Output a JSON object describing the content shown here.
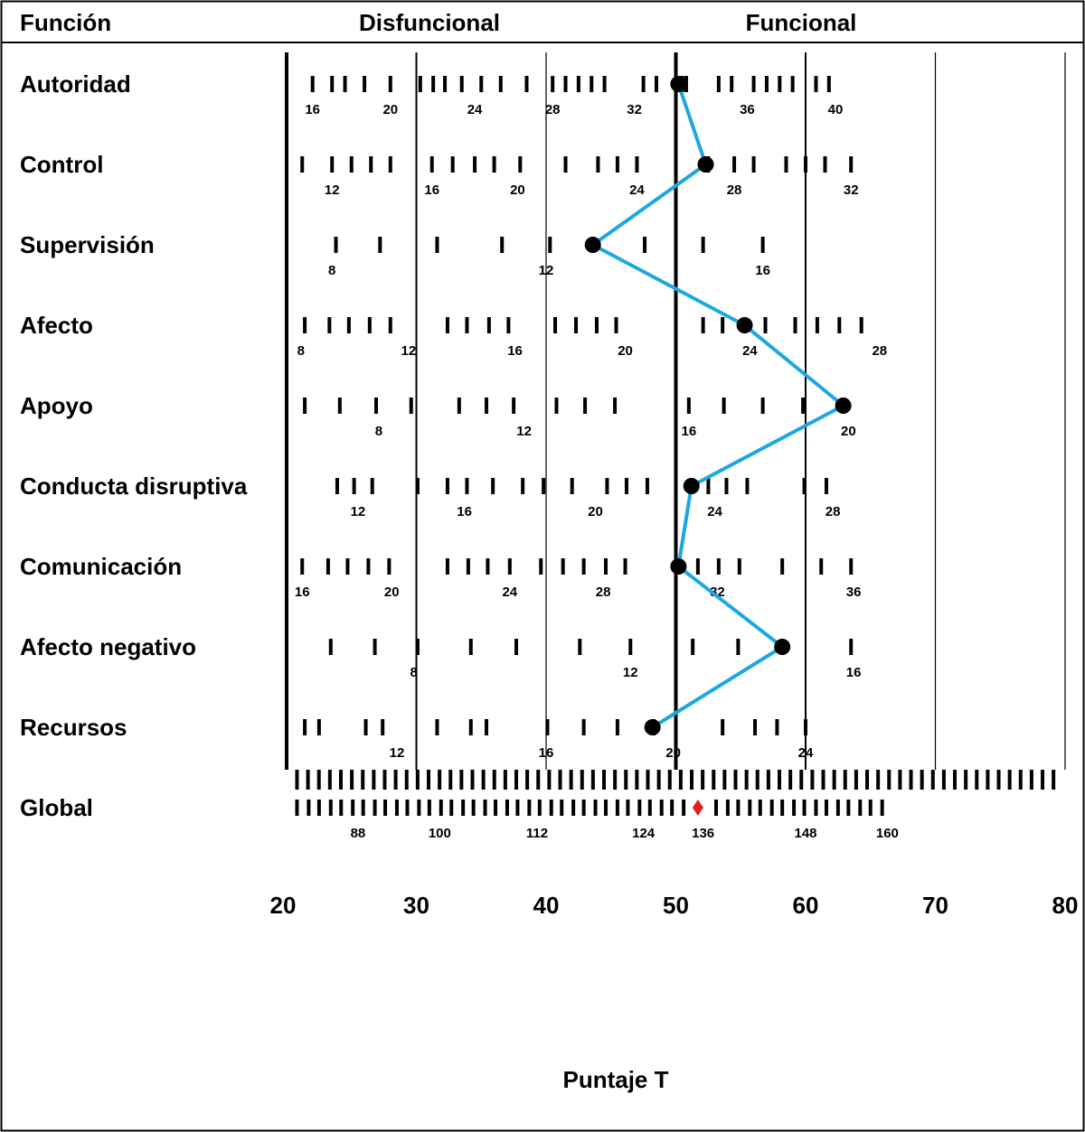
{
  "headers": {
    "col1": "Función",
    "col2": "Disfuncional",
    "col3": "Funcional"
  },
  "chart_data": {
    "type": "line",
    "title": "",
    "xlabel": "Puntaje T",
    "xlim": [
      20,
      80
    ],
    "x_ticks": [
      20,
      30,
      40,
      50,
      60,
      70,
      80
    ],
    "series_color": "#1ea7e1",
    "marker_color": "#000000",
    "global_marker_color": "#e02020",
    "rows": [
      {
        "name": "Autoridad",
        "ticks": [
          22,
          23.5,
          24.5,
          26,
          28,
          30.3,
          31.3,
          32.2,
          33.5,
          35,
          36.5,
          38.5,
          40.5,
          41.5,
          42.5,
          43.5,
          44.5,
          47.5,
          48.5,
          50.5,
          50.8,
          53.3,
          54.3,
          56,
          57,
          58,
          59,
          60.8,
          61.8
        ],
        "numbers": [
          {
            "label": "16",
            "x": 22
          },
          {
            "label": "20",
            "x": 28
          },
          {
            "label": "24",
            "x": 34.5
          },
          {
            "label": "28",
            "x": 40.5
          },
          {
            "label": "32",
            "x": 46.8
          },
          {
            "label": "36",
            "x": 55.5
          },
          {
            "label": "40",
            "x": 62.3
          }
        ],
        "point": 50.2
      },
      {
        "name": "Control",
        "ticks": [
          21.2,
          23.5,
          25,
          26.5,
          28,
          31.2,
          32.8,
          34.5,
          36,
          38,
          41.5,
          44,
          45.5,
          47,
          52.5,
          54.5,
          56,
          58.5,
          60,
          61.5,
          63.5
        ],
        "numbers": [
          {
            "label": "12",
            "x": 23.5
          },
          {
            "label": "16",
            "x": 31.2
          },
          {
            "label": "20",
            "x": 37.8
          },
          {
            "label": "24",
            "x": 47
          },
          {
            "label": "28",
            "x": 54.5
          },
          {
            "label": "32",
            "x": 63.5
          }
        ],
        "point": 52.3
      },
      {
        "name": "Supervisión",
        "ticks": [
          23.8,
          27.2,
          31.6,
          36.6,
          40.3,
          43.6,
          47.6,
          52.1,
          56.7
        ],
        "numbers": [
          {
            "label": "8",
            "x": 23.5
          },
          {
            "label": "12",
            "x": 40
          },
          {
            "label": "16",
            "x": 56.7
          }
        ],
        "point": 43.6
      },
      {
        "name": "Afecto",
        "ticks": [
          21.4,
          23.3,
          24.8,
          26.4,
          28,
          32.4,
          33.9,
          35.6,
          37.1,
          40.7,
          42.3,
          43.9,
          45.4,
          52.1,
          53.6,
          55.3,
          56.9,
          59.2,
          60.9,
          62.6,
          64.3
        ],
        "numbers": [
          {
            "label": "8",
            "x": 21.1
          },
          {
            "label": "12",
            "x": 29.4
          },
          {
            "label": "16",
            "x": 37.6
          },
          {
            "label": "20",
            "x": 46.1
          },
          {
            "label": "24",
            "x": 55.7
          },
          {
            "label": "28",
            "x": 65.7
          }
        ],
        "point": 55.3
      },
      {
        "name": "Apoyo",
        "ticks": [
          21.4,
          24.1,
          26.9,
          29.6,
          33.3,
          35.4,
          37.5,
          40.8,
          43,
          45.3,
          51,
          53.7,
          56.7,
          59.8,
          62.9
        ],
        "numbers": [
          {
            "label": "8",
            "x": 27.1
          },
          {
            "label": "12",
            "x": 38.3
          },
          {
            "label": "16",
            "x": 51
          },
          {
            "label": "20",
            "x": 63.3
          }
        ],
        "point": 62.9
      },
      {
        "name": "Conducta disruptiva",
        "ticks": [
          23.9,
          25.2,
          26.6,
          30.1,
          32.4,
          33.9,
          35.9,
          38.2,
          39.8,
          42,
          44.7,
          46.2,
          47.8,
          51.2,
          52.5,
          53.9,
          55.5,
          59.9,
          61.6
        ],
        "numbers": [
          {
            "label": "12",
            "x": 25.5
          },
          {
            "label": "16",
            "x": 33.7
          },
          {
            "label": "20",
            "x": 43.8
          },
          {
            "label": "24",
            "x": 53
          },
          {
            "label": "28",
            "x": 62.1
          }
        ],
        "point": 51.2
      },
      {
        "name": "Comunicación",
        "ticks": [
          21.2,
          23.2,
          24.7,
          26.3,
          27.9,
          32.4,
          34,
          35.5,
          37.2,
          39.6,
          41.3,
          42.9,
          44.6,
          46.1,
          50.1,
          51.7,
          53.3,
          54.9,
          58.2,
          61.2,
          63.5
        ],
        "numbers": [
          {
            "label": "16",
            "x": 21.2
          },
          {
            "label": "20",
            "x": 28.1
          },
          {
            "label": "24",
            "x": 37.2
          },
          {
            "label": "28",
            "x": 44.4
          },
          {
            "label": "32",
            "x": 53.2
          },
          {
            "label": "36",
            "x": 63.7
          }
        ],
        "point": 50.2
      },
      {
        "name": "Afecto negativo",
        "ticks": [
          23.4,
          26.8,
          30.1,
          34.2,
          37.7,
          42.6,
          46.5,
          51.3,
          54.8,
          58.2,
          63.5
        ],
        "numbers": [
          {
            "label": "8",
            "x": 29.8
          },
          {
            "label": "12",
            "x": 46.5
          },
          {
            "label": "16",
            "x": 63.7
          }
        ],
        "point": 58.2
      },
      {
        "name": "Recursos",
        "ticks": [
          21.4,
          22.5,
          26.1,
          27.4,
          31.6,
          34.2,
          35.4,
          40.1,
          42.9,
          45.5,
          48.3,
          53.6,
          56.1,
          57.8,
          60
        ],
        "numbers": [
          {
            "label": "12",
            "x": 28.5
          },
          {
            "label": "16",
            "x": 40
          },
          {
            "label": "20",
            "x": 49.8
          },
          {
            "label": "24",
            "x": 60
          }
        ],
        "point": 48.2
      },
      {
        "name": "Global",
        "ticks": [
          20.8,
          21.7,
          22.5,
          23.4,
          24.2,
          25.1,
          25.9,
          26.8,
          27.6,
          28.5,
          29.3,
          30.2,
          31,
          31.9,
          32.7,
          33.6,
          34.4,
          35.3,
          36.1,
          37,
          37.8,
          38.7,
          39.5,
          40.4,
          41.2,
          42.1,
          42.9,
          43.8,
          44.6,
          45.5,
          46.3,
          47.2,
          48,
          48.9,
          49.7,
          50.6,
          53.1,
          54,
          54.8,
          55.7,
          56.5,
          57.4,
          58.2,
          59.1,
          59.9,
          60.8,
          61.6,
          62.5,
          63.3,
          64.2,
          65,
          65.9
        ],
        "numbers": [
          {
            "label": "88",
            "x": 25.5
          },
          {
            "label": "100",
            "x": 31.8
          },
          {
            "label": "112",
            "x": 39.3
          },
          {
            "label": "124",
            "x": 47.5
          },
          {
            "label": "136",
            "x": 52.1
          },
          {
            "label": "148",
            "x": 60
          },
          {
            "label": "160",
            "x": 66.3
          }
        ],
        "marker": 51.7
      }
    ],
    "scale_ticks_from": 20.8,
    "scale_ticks_to": 79.5,
    "scale_ticks_step": 0.845
  }
}
